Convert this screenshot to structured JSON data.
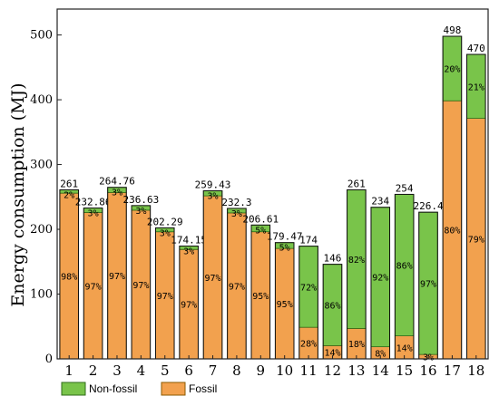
{
  "colors": {
    "fossil": "#f2a14e",
    "non_fossil": "#79c44a",
    "fossil_edge": "#8b5a00",
    "non_fossil_edge": "#2f6b1a",
    "frame": "#222222"
  },
  "chart_data": {
    "type": "bar",
    "stacked": true,
    "xlabel": "",
    "ylabel": "Energy consumption (MJ)",
    "ylim": [
      0,
      540
    ],
    "yticks": [
      "0",
      "100",
      "200",
      "300",
      "400",
      "500"
    ],
    "categories": [
      "1",
      "2",
      "3",
      "4",
      "5",
      "6",
      "7",
      "8",
      "9",
      "10",
      "11",
      "12",
      "13",
      "14",
      "15",
      "16",
      "17",
      "18"
    ],
    "totals": [
      261,
      232.86,
      264.76,
      236.63,
      202.29,
      174.15,
      259.43,
      232.3,
      206.61,
      179.47,
      174,
      146,
      261,
      234,
      254,
      226.4,
      498,
      470
    ],
    "total_labels": [
      "261",
      "232.86",
      "264.76",
      "236.63",
      "202.29",
      "174.15",
      "259.43",
      "232.3",
      "206.61",
      "179.47",
      "174",
      "146",
      "261",
      "234",
      "254",
      "226.4",
      "498",
      "470"
    ],
    "series": [
      {
        "name": "Fossil",
        "share_pct": [
          98,
          97,
          97,
          97,
          97,
          97,
          97,
          97,
          95,
          95,
          28,
          14,
          18,
          8,
          14,
          3,
          80,
          79
        ],
        "labels": [
          "98%",
          "97%",
          "97%",
          "97%",
          "97%",
          "97%",
          "97%",
          "97%",
          "95%",
          "95%",
          "28%",
          "14%",
          "18%",
          "8%",
          "14%",
          "3%",
          "80%",
          "79%"
        ]
      },
      {
        "name": "Non-fossil",
        "share_pct": [
          2,
          3,
          3,
          3,
          3,
          3,
          3,
          3,
          5,
          5,
          72,
          86,
          82,
          92,
          86,
          97,
          20,
          21
        ],
        "labels": [
          "2%",
          "3%",
          "3%",
          "3%",
          "3%",
          "3%",
          "3%",
          "3%",
          "5%",
          "5%",
          "72%",
          "86%",
          "82%",
          "92%",
          "86%",
          "97%",
          "20%",
          "21%"
        ]
      }
    ],
    "legend": {
      "placement": "bottom-left",
      "entries": [
        "Non-fossil",
        "Fossil"
      ]
    }
  }
}
